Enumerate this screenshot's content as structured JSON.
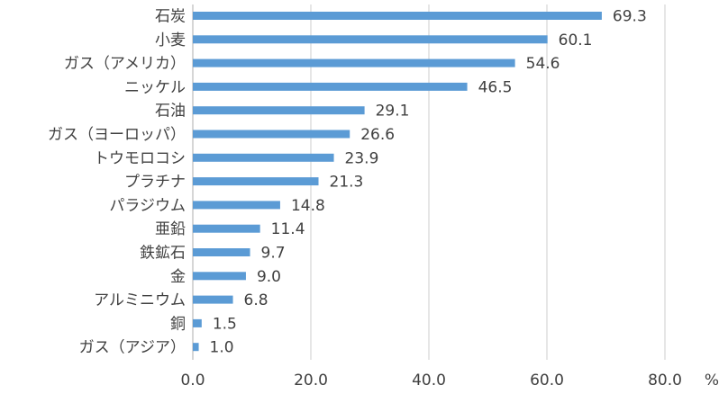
{
  "chart_data": {
    "type": "bar",
    "orientation": "horizontal",
    "categories": [
      "石炭",
      "小麦",
      "ガス（アメリカ）",
      "ニッケル",
      "石油",
      "ガス（ヨーロッパ）",
      "トウモロコシ",
      "プラチナ",
      "パラジウム",
      "亜鉛",
      "鉄鉱石",
      "金",
      "アルミニウム",
      "銅",
      "ガス（アジア）"
    ],
    "values": [
      69.3,
      60.1,
      54.6,
      46.5,
      29.1,
      26.6,
      23.9,
      21.3,
      14.8,
      11.4,
      9.7,
      9.0,
      6.8,
      1.5,
      1.0
    ],
    "data_labels": [
      "69.3",
      "60.1",
      "54.6",
      "46.5",
      "29.1",
      "26.6",
      "23.9",
      "21.3",
      "14.8",
      "11.4",
      "9.7",
      "9.0",
      "6.8",
      "1.5",
      "1.0"
    ],
    "x_ticks": [
      "0.0",
      "20.0",
      "40.0",
      "60.0",
      "80.0"
    ],
    "x_tick_values": [
      0,
      20,
      40,
      60,
      80
    ],
    "xlim": [
      0,
      80
    ],
    "x_unit": "%",
    "grid": true,
    "legend": false,
    "colors": {
      "bar": "#5b9bd5",
      "grid": "#d9d9d9",
      "text": "#404040",
      "axis": "#bfbfbf"
    }
  }
}
